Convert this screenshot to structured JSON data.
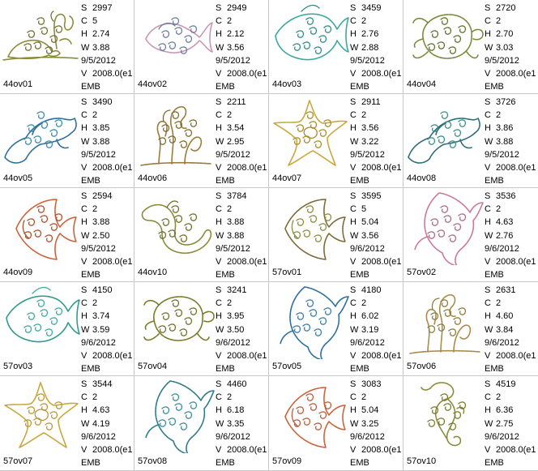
{
  "labels": {
    "stitches": "S",
    "colors": "C",
    "height": "H",
    "width": "W",
    "version": "V"
  },
  "designs": [
    {
      "name": "44ov01",
      "stitches": "2997",
      "colors": "5",
      "height": "2.74",
      "width": "3.88",
      "date": "9/5/2012",
      "version": "2008.0(e1",
      "format": "EMB",
      "shape": "turtle-coral",
      "color1": "#8a8a3a",
      "color2": "#6e6e2a"
    },
    {
      "name": "44ov02",
      "stitches": "2949",
      "colors": "2",
      "height": "2.12",
      "width": "3.56",
      "date": "9/5/2012",
      "version": "2008.0(e1",
      "format": "EMB",
      "shape": "fish",
      "color1": "#c896b4",
      "color2": "#6a7aa0"
    },
    {
      "name": "44ov03",
      "stitches": "3459",
      "colors": "2",
      "height": "2.76",
      "width": "2.88",
      "date": "9/5/2012",
      "version": "2008.0(e1",
      "format": "EMB",
      "shape": "angelfish-wide",
      "color1": "#3aa8a0",
      "color2": "#2e8a84"
    },
    {
      "name": "44ov04",
      "stitches": "2720",
      "colors": "2",
      "height": "2.70",
      "width": "3.03",
      "date": "9/5/2012",
      "version": "2008.0(e1",
      "format": "EMB",
      "shape": "turtle",
      "color1": "#7a8a3a",
      "color2": "#5e6e2a"
    },
    {
      "name": "44ov05",
      "stitches": "3490",
      "colors": "2",
      "height": "3.85",
      "width": "3.88",
      "date": "9/5/2012",
      "version": "2008.0(e1",
      "format": "EMB",
      "shape": "dolphin",
      "color1": "#2e6e9a",
      "color2": "#3a8aa8"
    },
    {
      "name": "44ov06",
      "stitches": "2211",
      "colors": "2",
      "height": "3.54",
      "width": "2.95",
      "date": "9/5/2012",
      "version": "2008.0(e1",
      "format": "EMB",
      "shape": "coral",
      "color1": "#9a7a3a",
      "color2": "#7a6a2a"
    },
    {
      "name": "44ov07",
      "stitches": "2911",
      "colors": "2",
      "height": "3.56",
      "width": "3.22",
      "date": "9/5/2012",
      "version": "2008.0(e1",
      "format": "EMB",
      "shape": "starfish",
      "color1": "#c8a83a",
      "color2": "#a88a2a"
    },
    {
      "name": "44ov08",
      "stitches": "3726",
      "colors": "2",
      "height": "3.86",
      "width": "3.88",
      "date": "9/5/2012",
      "version": "2008.0(e1",
      "format": "EMB",
      "shape": "dolphin",
      "color1": "#2e6e78",
      "color2": "#3a8a8a"
    },
    {
      "name": "44ov09",
      "stitches": "2594",
      "colors": "2",
      "height": "3.88",
      "width": "2.50",
      "date": "9/5/2012",
      "version": "2008.0(e1",
      "format": "EMB",
      "shape": "angelfish",
      "color1": "#c8643a",
      "color2": "#a84e2a"
    },
    {
      "name": "44ov10",
      "stitches": "3784",
      "colors": "2",
      "height": "3.88",
      "width": "3.88",
      "date": "9/5/2012",
      "version": "2008.0(e1",
      "format": "EMB",
      "shape": "seahorse-side",
      "color1": "#8a8a3a",
      "color2": "#6e6e2a"
    },
    {
      "name": "57ov01",
      "stitches": "3595",
      "colors": "5",
      "height": "5.04",
      "width": "3.56",
      "date": "9/6/2012",
      "version": "2008.0(e1",
      "format": "EMB",
      "shape": "angelfish",
      "color1": "#7a6a3a",
      "color2": "#8a8a3a"
    },
    {
      "name": "57ov02",
      "stitches": "3536",
      "colors": "2",
      "height": "4.63",
      "width": "2.76",
      "date": "9/6/2012",
      "version": "2008.0(e1",
      "format": "EMB",
      "shape": "dolphin-vert",
      "color1": "#c87a9a",
      "color2": "#a86a88"
    },
    {
      "name": "57ov03",
      "stitches": "4150",
      "colors": "2",
      "height": "3.74",
      "width": "3.59",
      "date": "9/6/2012",
      "version": "2008.0(e1",
      "format": "EMB",
      "shape": "angelfish-wide",
      "color1": "#2e9a8a",
      "color2": "#3aa8a0"
    },
    {
      "name": "57ov04",
      "stitches": "3241",
      "colors": "2",
      "height": "3.95",
      "width": "3.50",
      "date": "9/6/2012",
      "version": "2008.0(e1",
      "format": "EMB",
      "shape": "turtle",
      "color1": "#7a7a2a",
      "color2": "#6e6e2a"
    },
    {
      "name": "57ov05",
      "stitches": "4180",
      "colors": "2",
      "height": "6.02",
      "width": "3.19",
      "date": "9/6/2012",
      "version": "2008.0(e1",
      "format": "EMB",
      "shape": "dolphin-vert",
      "color1": "#2e6e9a",
      "color2": "#3a7aa8"
    },
    {
      "name": "57ov06",
      "stitches": "2631",
      "colors": "2",
      "height": "4.60",
      "width": "3.84",
      "date": "9/6/2012",
      "version": "2008.0(e1",
      "format": "EMB",
      "shape": "coral",
      "color1": "#a88a4a",
      "color2": "#8a7a3a"
    },
    {
      "name": "57ov07",
      "stitches": "3544",
      "colors": "2",
      "height": "4.63",
      "width": "4.19",
      "date": "9/6/2012",
      "version": "2008.0(e1",
      "format": "EMB",
      "shape": "starfish",
      "color1": "#c8a83a",
      "color2": "#b8963a"
    },
    {
      "name": "57ov08",
      "stitches": "4460",
      "colors": "2",
      "height": "6.18",
      "width": "3.35",
      "date": "9/6/2012",
      "version": "2008.0(e1",
      "format": "EMB",
      "shape": "dolphin-vert",
      "color1": "#2e7a88",
      "color2": "#3a8a9a"
    },
    {
      "name": "57ov09",
      "stitches": "3083",
      "colors": "2",
      "height": "5.04",
      "width": "3.25",
      "date": "9/6/2012",
      "version": "2008.0(e1",
      "format": "EMB",
      "shape": "angelfish",
      "color1": "#c8643a",
      "color2": "#b85a3a"
    },
    {
      "name": "57ov10",
      "stitches": "4519",
      "colors": "2",
      "height": "6.36",
      "width": "2.75",
      "date": "9/6/2012",
      "version": "2008.0(e1",
      "format": "EMB",
      "shape": "seahorse",
      "color1": "#8a8a3a",
      "color2": "#7a7a2a"
    }
  ]
}
